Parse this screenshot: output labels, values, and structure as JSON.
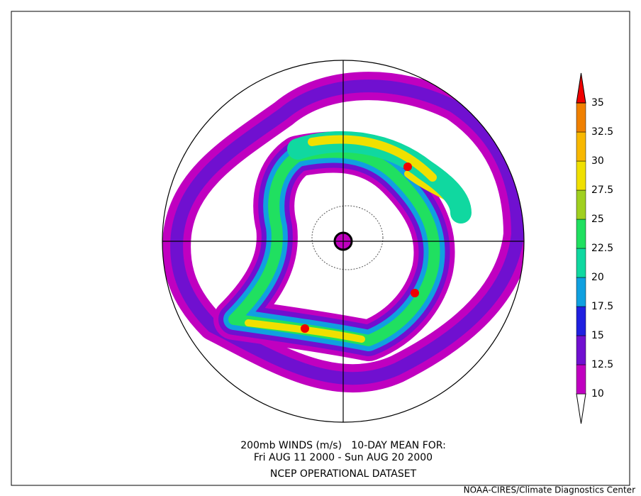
{
  "caption": {
    "line1": "200mb WINDS (m/s)   10-DAY MEAN FOR:",
    "line2": "Fri AUG 11 2000 - Sun AUG 20 2000",
    "line3": "NCEP OPERATIONAL DATASET"
  },
  "credit": "NOAA-CIRES/Climate Diagnostics Center",
  "colorbar": {
    "levels": [
      10,
      12.5,
      15,
      17.5,
      20,
      22.5,
      25,
      27.5,
      30,
      32.5,
      35
    ],
    "colors": [
      "#ffffff",
      "#c000c0",
      "#7010d0",
      "#2020e0",
      "#10a0e0",
      "#10d8a0",
      "#20e060",
      "#a0d020",
      "#f0e000",
      "#f8b800",
      "#f08000",
      "#f00000"
    ]
  }
}
